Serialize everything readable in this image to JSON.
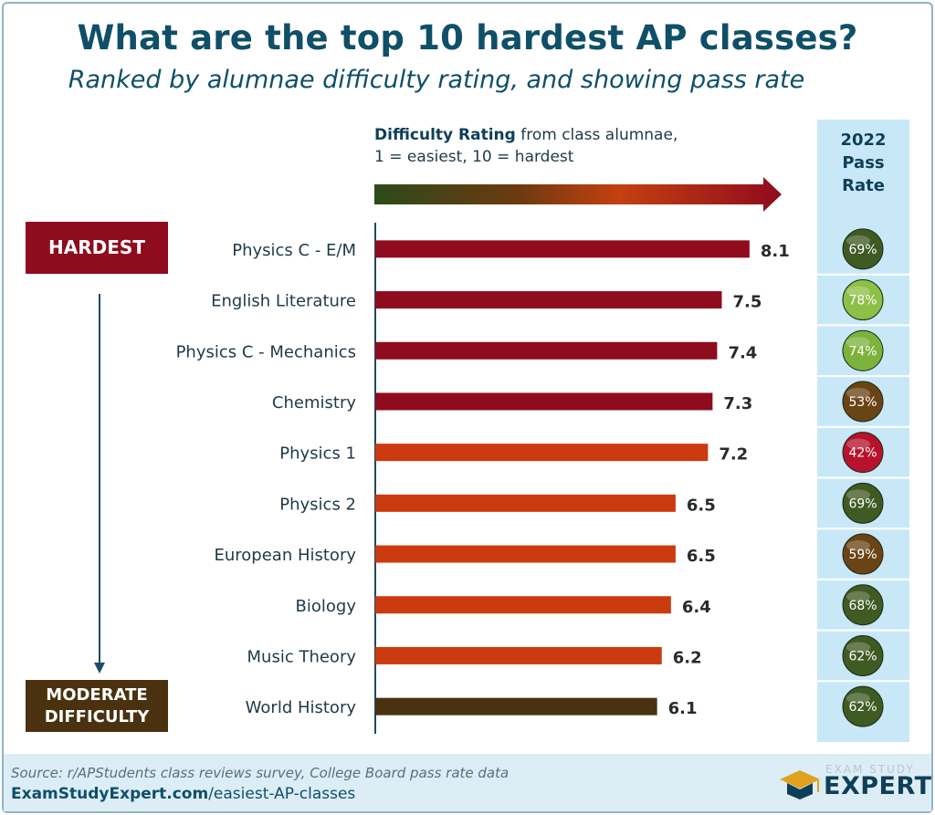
{
  "title": "What are the top 10 hardest AP classes?",
  "subtitle": "Ranked by alumnae difficulty rating, and showing pass rate",
  "difficulty_label": {
    "bold": "Difficulty Rating",
    "rest_line1": " from class alumnae,",
    "line2": "1 = easiest, 10 = hardest"
  },
  "pass_rate_header": [
    "2022",
    "Pass",
    "Rate"
  ],
  "legend": {
    "hardest": "HARDEST",
    "moderate_line1": "MODERATE",
    "moderate_line2": "DIFFICULTY"
  },
  "footer": {
    "source": "Source: r/APStudents class reviews survey, College Board pass rate data",
    "url_bold": "ExamStudyExpert.com",
    "url_rest": "/easiest-AP-classes"
  },
  "logo": {
    "top": "EXAM STUDY",
    "main": "EXPERT"
  },
  "colors": {
    "title": "#0f4f68",
    "hardest": "#8f0b1e",
    "hard": "#cc3a0f",
    "moderate": "#4a3210",
    "pass_col_bg": "#c9e8f7"
  },
  "chart_data": {
    "type": "bar",
    "orientation": "horizontal",
    "title": "What are the top 10 hardest AP classes?",
    "xlabel": "Difficulty Rating from class alumnae, 1 = easiest, 10 = hardest",
    "ylabel": "",
    "xlim": [
      0,
      10
    ],
    "categories": [
      "Physics C - E/M",
      "English Literature",
      "Physics C - Mechanics",
      "Chemistry",
      "Physics 1",
      "Physics 2",
      "European History",
      "Biology",
      "Music Theory",
      "World History"
    ],
    "series": [
      {
        "name": "Difficulty Rating",
        "values": [
          8.1,
          7.5,
          7.4,
          7.3,
          7.2,
          6.5,
          6.5,
          6.4,
          6.2,
          6.1
        ]
      },
      {
        "name": "2022 Pass Rate (%)",
        "values": [
          69,
          78,
          74,
          53,
          42,
          69,
          59,
          68,
          62,
          62
        ]
      }
    ],
    "value_labels": [
      "8.1",
      "7.5",
      "7.4",
      "7.3",
      "7.2",
      "6.5",
      "6.5",
      "6.4",
      "6.2",
      "6.1"
    ],
    "pass_labels": [
      "69%",
      "78%",
      "74%",
      "53%",
      "42%",
      "69%",
      "59%",
      "68%",
      "62%",
      "62%"
    ],
    "tiers": [
      "hardest",
      "hardest",
      "hardest",
      "hardest",
      "hard",
      "hard",
      "hard",
      "hard",
      "hard",
      "moderate"
    ],
    "pass_colors": [
      "#3f5a22",
      "#8cc046",
      "#7db33c",
      "#6b4415",
      "#b8122c",
      "#3f5a22",
      "#6b4415",
      "#3f5a22",
      "#3f5a22",
      "#3f5a22"
    ]
  }
}
